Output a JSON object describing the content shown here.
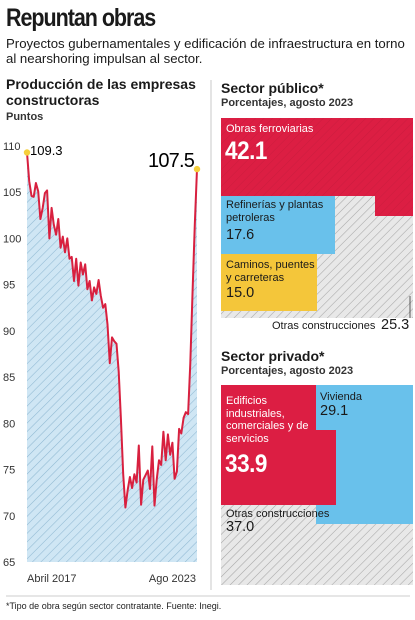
{
  "header": {
    "title": "Repuntan obras",
    "subtitle": "Proyectos gubernamentales y edificación de infraestructura en torno al nearshoring impulsan al sector."
  },
  "colors": {
    "line": "#d8203f",
    "area": "#cfe6f4",
    "red": "#dc1e43",
    "blue": "#69c1eb",
    "yellow": "#f4c63a",
    "gray": "#c8c8c8",
    "dot": "#f6cf3c"
  },
  "line_panel": {
    "title": "Producción de las empresas constructoras",
    "unit": "Puntos",
    "start_label": "109.3",
    "end_label": "107.5"
  },
  "public_panel": {
    "title": "Sector público*",
    "subtitle": "Porcentajes, agosto 2023",
    "cells": [
      {
        "label": "Obras ferroviarias",
        "value": "42.1"
      },
      {
        "label": "Refinerías y plantas petroleras",
        "value": "17.6"
      },
      {
        "label": "Caminos, puentes y carreteras",
        "value": "15.0"
      },
      {
        "label": "Otras construcciones",
        "value": "25.3"
      }
    ]
  },
  "private_panel": {
    "title": "Sector privado*",
    "subtitle": "Porcentajes, agosto 2023",
    "cells": [
      {
        "label": "Edificios industriales, comerciales y de servicios",
        "value": "33.9"
      },
      {
        "label": "Vivienda",
        "value": "29.1"
      },
      {
        "label": "Otras construcciones",
        "value": "37.0"
      }
    ]
  },
  "footnote": "*Tipo de obra según sector contratante. Fuente: Inegi.",
  "chart_data": [
    {
      "type": "area",
      "title": "Producción de las empresas constructoras",
      "ylabel": "Puntos",
      "ylim": [
        65,
        110
      ],
      "yticks": [
        65,
        70,
        75,
        80,
        85,
        90,
        95,
        100,
        105,
        110
      ],
      "xticks": [
        "Abril 2017",
        "Ago 2023"
      ],
      "grid": false,
      "x": [
        "2017-04",
        "2017-05",
        "2017-06",
        "2017-07",
        "2017-08",
        "2017-09",
        "2017-10",
        "2017-11",
        "2017-12",
        "2018-01",
        "2018-02",
        "2018-03",
        "2018-04",
        "2018-05",
        "2018-06",
        "2018-07",
        "2018-08",
        "2018-09",
        "2018-10",
        "2018-11",
        "2018-12",
        "2019-01",
        "2019-02",
        "2019-03",
        "2019-04",
        "2019-05",
        "2019-06",
        "2019-07",
        "2019-08",
        "2019-09",
        "2019-10",
        "2019-11",
        "2019-12",
        "2020-01",
        "2020-02",
        "2020-03",
        "2020-04",
        "2020-05",
        "2020-06",
        "2020-07",
        "2020-08",
        "2020-09",
        "2020-10",
        "2020-11",
        "2020-12",
        "2021-01",
        "2021-02",
        "2021-03",
        "2021-04",
        "2021-05",
        "2021-06",
        "2021-07",
        "2021-08",
        "2021-09",
        "2021-10",
        "2021-11",
        "2021-12",
        "2022-01",
        "2022-02",
        "2022-03",
        "2022-04",
        "2022-05",
        "2022-06",
        "2022-07",
        "2022-08",
        "2022-09",
        "2022-10",
        "2022-11",
        "2022-12",
        "2023-01",
        "2023-02",
        "2023-03",
        "2023-04",
        "2023-05",
        "2023-06",
        "2023-07",
        "2023-08"
      ],
      "series": [
        {
          "values": [
            109.3,
            106.2,
            104.6,
            104.5,
            106.0,
            105.1,
            102.1,
            103.3,
            104.9,
            105.2,
            100.0,
            103.3,
            101.5,
            100.4,
            102.1,
            99.0,
            100.2,
            98.5,
            100.0,
            97.8,
            98.0,
            95.4,
            97.8,
            94.9,
            97.4,
            96.1,
            97.2,
            94.5,
            95.4,
            93.3,
            94.7,
            94.0,
            95.5,
            93.8,
            92.5,
            92.9,
            90.7,
            86.5,
            89.3,
            88.9,
            88.6,
            85.6,
            80.5,
            74.5,
            70.9,
            72.8,
            74.2,
            73.0,
            74.5,
            73.6,
            77.6,
            71.2,
            73.9,
            74.4,
            74.9,
            72.9,
            77.5,
            71.1,
            73.9,
            76.0,
            75.5,
            79.1,
            76.0,
            78.8,
            76.6,
            77.9,
            74.0,
            74.8,
            79.4,
            78.9,
            80.6,
            81.2,
            81.0,
            86.5,
            94.0,
            101.5,
            107.5
          ]
        }
      ]
    },
    {
      "type": "treemap",
      "title": "Sector público*",
      "subtitle": "Porcentajes, agosto 2023",
      "categories": [
        "Obras ferroviarias",
        "Refinerías y plantas petroleras",
        "Caminos, puentes y carreteras",
        "Otras construcciones"
      ],
      "values": [
        42.1,
        17.6,
        15.0,
        25.3
      ]
    },
    {
      "type": "treemap",
      "title": "Sector privado*",
      "subtitle": "Porcentajes, agosto 2023",
      "categories": [
        "Edificios industriales, comerciales y de servicios",
        "Vivienda",
        "Otras construcciones"
      ],
      "values": [
        33.9,
        29.1,
        37.0
      ]
    }
  ]
}
